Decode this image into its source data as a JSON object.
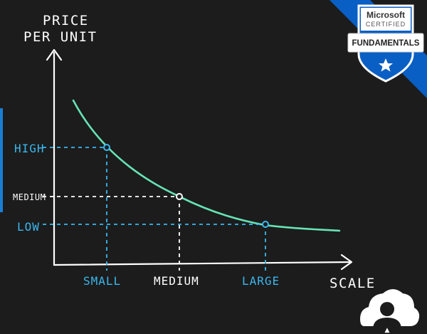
{
  "colors": {
    "background": "#1c1c1c",
    "curve": "#66e3b5",
    "accent_blue": "#3ab7ee",
    "white": "#ffffff",
    "left_bar": "#1a7fd4",
    "badge_blue": "#0a5fc4"
  },
  "diagram": {
    "y_axis_label_line1": "PRICE",
    "y_axis_label_line2": "PER UNIT",
    "x_axis_label": "SCALE",
    "y_levels": [
      {
        "label": "HIGH",
        "value": 3,
        "color": "accent_blue"
      },
      {
        "label": "MEDIUM",
        "value": 2,
        "color": "white"
      },
      {
        "label": "LOW",
        "value": 1,
        "color": "accent_blue"
      }
    ],
    "x_levels": [
      {
        "label": "SMALL",
        "value": 1,
        "color": "accent_blue"
      },
      {
        "label": "MEDIUM",
        "value": 2,
        "color": "white"
      },
      {
        "label": "LARGE",
        "value": 3,
        "color": "accent_blue"
      }
    ],
    "points": [
      {
        "x_level": "SMALL",
        "y_level": "HIGH"
      },
      {
        "x_level": "MEDIUM",
        "y_level": "MEDIUM"
      },
      {
        "x_level": "LARGE",
        "y_level": "LOW"
      }
    ],
    "curve_type": "decreasing"
  },
  "badge": {
    "brand": "Microsoft",
    "certified": "CERTIFIED",
    "title": "FUNDAMENTALS",
    "star_icon": "star-icon",
    "ribbon_color": "#0a5fc4"
  },
  "logo": {
    "icon": "cloud-avatar-icon"
  }
}
